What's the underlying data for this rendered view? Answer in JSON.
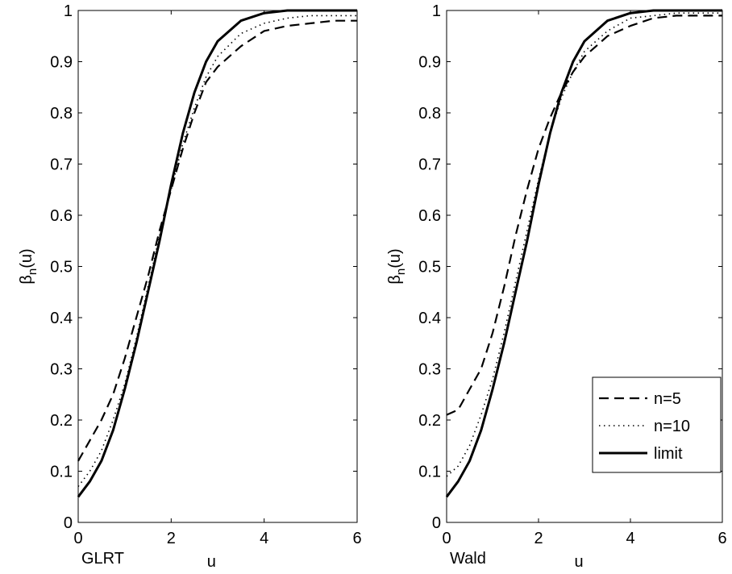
{
  "chart_data": [
    {
      "type": "line",
      "panel_label": "GLRT",
      "xlabel": "u",
      "ylabel_main": "β",
      "ylabel_sub": "n",
      "ylabel_tail": "(u)",
      "xlim": [
        0,
        6
      ],
      "ylim": [
        0,
        1
      ],
      "xticks": [
        0,
        2,
        4,
        6
      ],
      "yticks": [
        0,
        0.1,
        0.2,
        0.3,
        0.4,
        0.5,
        0.6,
        0.7,
        0.8,
        0.9,
        1
      ],
      "ytick_labels": [
        "0",
        "0.1",
        "0.2",
        "0.3",
        "0.4",
        "0.5",
        "0.6",
        "0.7",
        "0.8",
        "0.9",
        "1"
      ],
      "xtick_labels": [
        "0",
        "2",
        "4",
        "6"
      ],
      "legend": null,
      "series": [
        {
          "name": "n=5",
          "style": "dashed",
          "x": [
            0,
            0.25,
            0.5,
            0.75,
            1.0,
            1.25,
            1.5,
            1.75,
            2.0,
            2.25,
            2.5,
            2.75,
            3.0,
            3.5,
            4.0,
            4.5,
            5.0,
            5.5,
            6.0
          ],
          "y": [
            0.12,
            0.16,
            0.2,
            0.25,
            0.32,
            0.4,
            0.48,
            0.57,
            0.65,
            0.73,
            0.8,
            0.86,
            0.89,
            0.93,
            0.96,
            0.97,
            0.975,
            0.98,
            0.98
          ]
        },
        {
          "name": "n=10",
          "style": "dotted",
          "x": [
            0,
            0.25,
            0.5,
            0.75,
            1.0,
            1.25,
            1.5,
            1.75,
            2.0,
            2.25,
            2.5,
            2.75,
            3.0,
            3.5,
            4.0,
            4.5,
            5.0,
            5.5,
            6.0
          ],
          "y": [
            0.07,
            0.1,
            0.14,
            0.2,
            0.27,
            0.36,
            0.46,
            0.56,
            0.65,
            0.74,
            0.81,
            0.87,
            0.91,
            0.955,
            0.975,
            0.985,
            0.99,
            0.99,
            0.99
          ]
        },
        {
          "name": "limit",
          "style": "solid",
          "x": [
            0,
            0.25,
            0.5,
            0.75,
            1.0,
            1.25,
            1.5,
            1.75,
            2.0,
            2.25,
            2.5,
            2.75,
            3.0,
            3.5,
            4.0,
            4.5,
            5.0,
            5.5,
            6.0
          ],
          "y": [
            0.05,
            0.08,
            0.12,
            0.18,
            0.26,
            0.35,
            0.45,
            0.55,
            0.66,
            0.76,
            0.84,
            0.9,
            0.94,
            0.98,
            0.995,
            1.0,
            1.0,
            1.0,
            1.0
          ]
        }
      ]
    },
    {
      "type": "line",
      "panel_label": "Wald",
      "xlabel": "u",
      "ylabel_main": "β",
      "ylabel_sub": "n",
      "ylabel_tail": "(u)",
      "xlim": [
        0,
        6
      ],
      "ylim": [
        0,
        1
      ],
      "xticks": [
        0,
        2,
        4,
        6
      ],
      "yticks": [
        0,
        0.1,
        0.2,
        0.3,
        0.4,
        0.5,
        0.6,
        0.7,
        0.8,
        0.9,
        1
      ],
      "ytick_labels": [
        "0",
        "0.1",
        "0.2",
        "0.3",
        "0.4",
        "0.5",
        "0.6",
        "0.7",
        "0.8",
        "0.9",
        "1"
      ],
      "xtick_labels": [
        "0",
        "2",
        "4",
        "6"
      ],
      "legend": "bottom-right",
      "series": [
        {
          "name": "n=5",
          "style": "dashed",
          "x": [
            0,
            0.25,
            0.5,
            0.75,
            1.0,
            1.25,
            1.5,
            1.75,
            2.0,
            2.25,
            2.5,
            2.75,
            3.0,
            3.5,
            4.0,
            4.5,
            5.0,
            5.5,
            6.0
          ],
          "y": [
            0.21,
            0.22,
            0.26,
            0.3,
            0.37,
            0.46,
            0.56,
            0.65,
            0.73,
            0.79,
            0.84,
            0.88,
            0.91,
            0.95,
            0.97,
            0.985,
            0.99,
            0.99,
            0.99
          ]
        },
        {
          "name": "n=10",
          "style": "dotted",
          "x": [
            0,
            0.25,
            0.5,
            0.75,
            1.0,
            1.25,
            1.5,
            1.75,
            2.0,
            2.25,
            2.5,
            2.75,
            3.0,
            3.5,
            4.0,
            4.5,
            5.0,
            5.5,
            6.0
          ],
          "y": [
            0.09,
            0.11,
            0.15,
            0.21,
            0.28,
            0.37,
            0.47,
            0.57,
            0.67,
            0.76,
            0.83,
            0.88,
            0.92,
            0.96,
            0.985,
            0.99,
            0.995,
            0.995,
            0.995
          ]
        },
        {
          "name": "limit",
          "style": "solid",
          "x": [
            0,
            0.25,
            0.5,
            0.75,
            1.0,
            1.25,
            1.5,
            1.75,
            2.0,
            2.25,
            2.5,
            2.75,
            3.0,
            3.5,
            4.0,
            4.5,
            5.0,
            5.5,
            6.0
          ],
          "y": [
            0.05,
            0.08,
            0.12,
            0.18,
            0.26,
            0.35,
            0.45,
            0.55,
            0.66,
            0.76,
            0.84,
            0.9,
            0.94,
            0.98,
            0.995,
            1.0,
            1.0,
            1.0,
            1.0
          ]
        }
      ]
    }
  ]
}
